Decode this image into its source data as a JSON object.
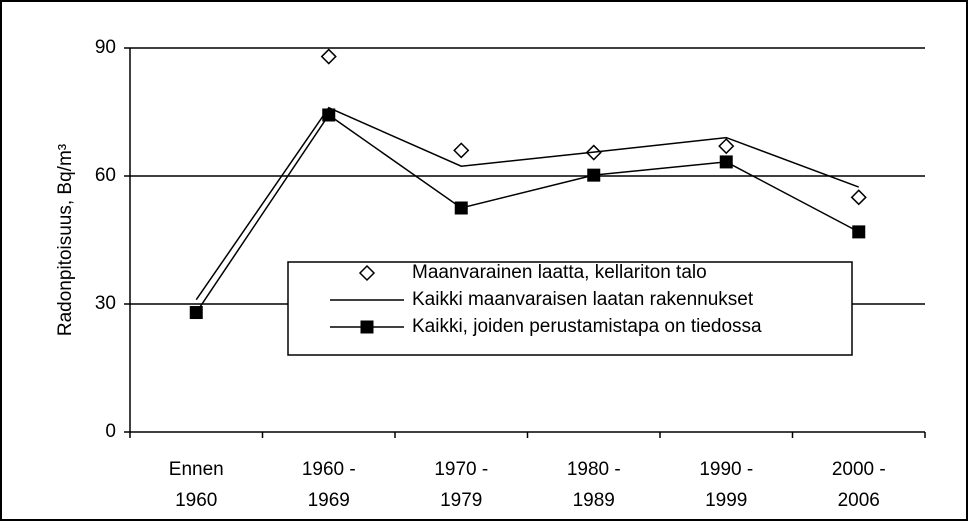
{
  "chart_data": {
    "type": "line",
    "ylabel": "Radonpitoisuus, Bq/m³",
    "categories": [
      "Ennen\n1960",
      "1960 -\n1969",
      "1970 -\n1979",
      "1980 -\n1989",
      "1990 -\n1999",
      "2000 -\n2006"
    ],
    "series": [
      {
        "name": "Maanvarainen laatta, kellariton talo",
        "color": "#000000",
        "marker": "diamond",
        "line": false,
        "values": [
          null,
          88,
          66,
          65.5,
          67,
          55
        ]
      },
      {
        "name": "Kaikki maanvaraisen laatan rakennukset",
        "color": "#000000",
        "marker": "none",
        "line": true,
        "values": [
          31,
          76,
          62.3,
          65.6,
          69,
          57.4
        ]
      },
      {
        "name": "Kaikki, joiden perustamistapa on tiedossa",
        "color": "#000000",
        "marker": "square",
        "line": true,
        "values": [
          28,
          74.3,
          52.5,
          60.2,
          63.3,
          46.9
        ]
      }
    ],
    "ylim": [
      0,
      90
    ],
    "yticks": [
      0,
      30,
      60,
      90
    ],
    "grid": true,
    "legend": "lower right"
  }
}
